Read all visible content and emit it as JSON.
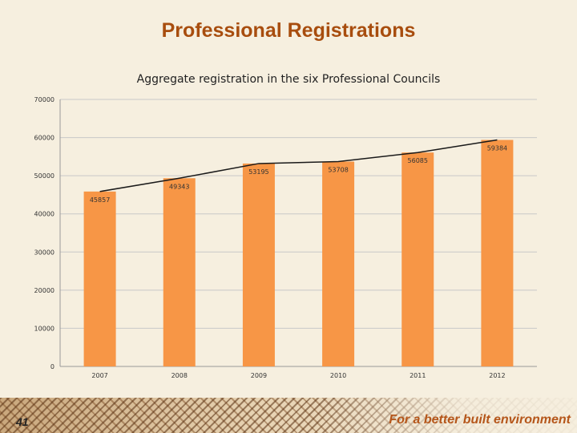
{
  "slide": {
    "title": "Professional  Registrations",
    "page_number": "41",
    "tagline": "For a better built environment"
  },
  "colors": {
    "bar": "#f79646",
    "line": "#1a1a1a",
    "title": "#a84d0e",
    "tagline": "#b5561a"
  },
  "chart_data": {
    "type": "bar",
    "title": "Aggregate registration in the six Professional Councils",
    "categories": [
      "2007",
      "2008",
      "2009",
      "2010",
      "2011",
      "2012"
    ],
    "series": [
      {
        "values": [
          45857,
          49343,
          53195,
          53708,
          56085,
          59384
        ]
      }
    ],
    "overlay_line": true,
    "data_labels": [
      "45857",
      "49343",
      "53195",
      "53708",
      "56085",
      "59384"
    ],
    "ylim": [
      0,
      70000
    ],
    "yticks": [
      0,
      10000,
      20000,
      30000,
      40000,
      50000,
      60000,
      70000
    ],
    "ytick_labels": [
      "0",
      "10000",
      "20000",
      "30000",
      "40000",
      "50000",
      "60000",
      "70000"
    ],
    "grid": true,
    "legend": "none"
  }
}
